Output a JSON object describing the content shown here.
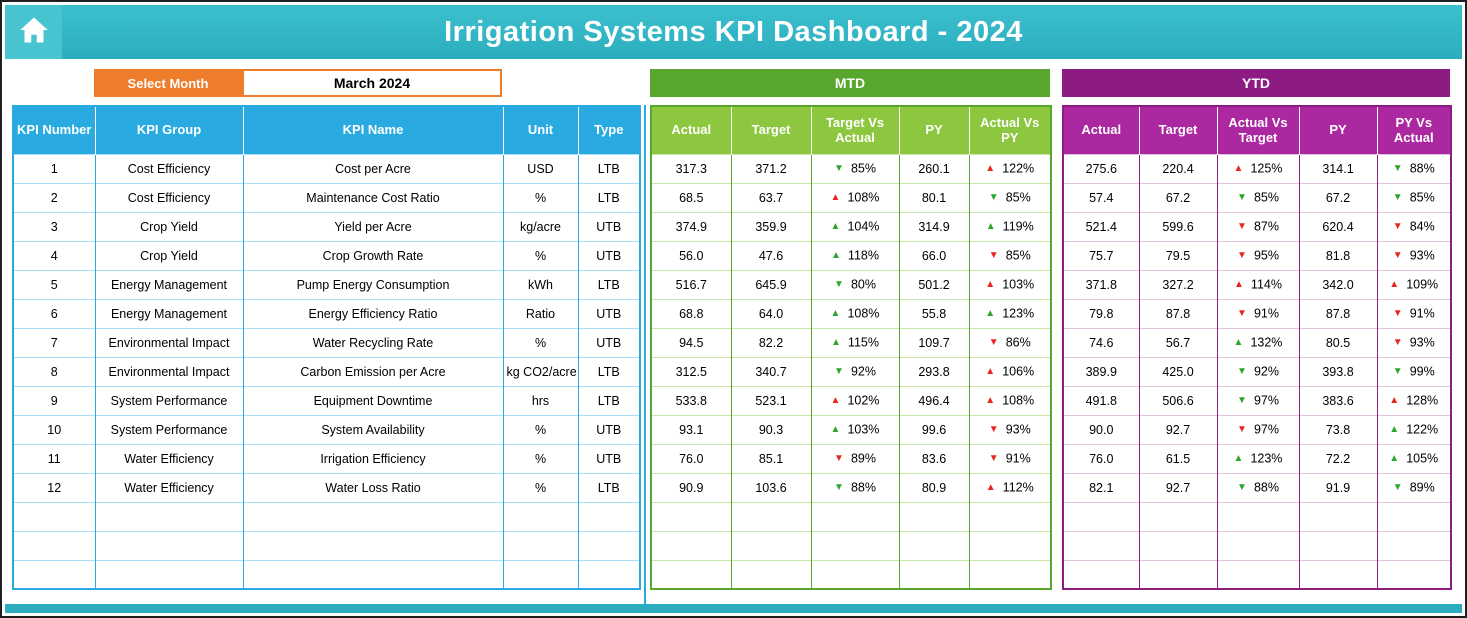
{
  "app": {
    "title": "Irrigation Systems KPI Dashboard - 2024"
  },
  "controls": {
    "select_month_label": "Select Month",
    "selected_month": "March 2024"
  },
  "bands": {
    "mtd": "MTD",
    "ytd": "YTD"
  },
  "icons": {
    "up": "▲",
    "down": "▼"
  },
  "colors": {
    "teal": "#2BADBD",
    "teal_light": "#3CC0CE",
    "teal_home": "#47C4D0",
    "orange": "#EE7C2B",
    "blue": "#29ABE2",
    "blue_light": "#A9DCF5",
    "green_band": "#58A62E",
    "green_header": "#8DC63F",
    "green_light": "#C9E6AA",
    "purple_band": "#8C1B82",
    "purple_header": "#AC28A0",
    "purple_light": "#E2C3DE",
    "arrow_green": "#2BA62B",
    "arrow_red": "#E8251F"
  },
  "table": {
    "info_headers": [
      "KPI Number",
      "KPI Group",
      "KPI Name",
      "Unit",
      "Type"
    ],
    "mtd_headers": [
      "Actual",
      "Target",
      "Target Vs Actual",
      "PY",
      "Actual Vs PY"
    ],
    "ytd_headers": [
      "Actual",
      "Target",
      "Actual Vs Target",
      "PY",
      "PY Vs Actual"
    ],
    "rows": [
      {
        "num": "1",
        "group": "Cost Efficiency",
        "name": "Cost per Acre",
        "unit": "USD",
        "type": "LTB",
        "mtd": {
          "actual": "317.3",
          "target": "371.2",
          "target_vs_actual": {
            "v": "85%",
            "d": "down",
            "c": "green"
          },
          "py": "260.1",
          "actual_vs_py": {
            "v": "122%",
            "d": "up",
            "c": "red"
          }
        },
        "ytd": {
          "actual": "275.6",
          "target": "220.4",
          "actual_vs_target": {
            "v": "125%",
            "d": "up",
            "c": "red"
          },
          "py": "314.1",
          "py_vs_actual": {
            "v": "88%",
            "d": "down",
            "c": "green"
          }
        }
      },
      {
        "num": "2",
        "group": "Cost Efficiency",
        "name": "Maintenance Cost Ratio",
        "unit": "%",
        "type": "LTB",
        "mtd": {
          "actual": "68.5",
          "target": "63.7",
          "target_vs_actual": {
            "v": "108%",
            "d": "up",
            "c": "red"
          },
          "py": "80.1",
          "actual_vs_py": {
            "v": "85%",
            "d": "down",
            "c": "green"
          }
        },
        "ytd": {
          "actual": "57.4",
          "target": "67.2",
          "actual_vs_target": {
            "v": "85%",
            "d": "down",
            "c": "green"
          },
          "py": "67.2",
          "py_vs_actual": {
            "v": "85%",
            "d": "down",
            "c": "green"
          }
        }
      },
      {
        "num": "3",
        "group": "Crop Yield",
        "name": "Yield per Acre",
        "unit": "kg/acre",
        "type": "UTB",
        "mtd": {
          "actual": "374.9",
          "target": "359.9",
          "target_vs_actual": {
            "v": "104%",
            "d": "up",
            "c": "green"
          },
          "py": "314.9",
          "actual_vs_py": {
            "v": "119%",
            "d": "up",
            "c": "green"
          }
        },
        "ytd": {
          "actual": "521.4",
          "target": "599.6",
          "actual_vs_target": {
            "v": "87%",
            "d": "down",
            "c": "red"
          },
          "py": "620.4",
          "py_vs_actual": {
            "v": "84%",
            "d": "down",
            "c": "red"
          }
        }
      },
      {
        "num": "4",
        "group": "Crop Yield",
        "name": "Crop Growth Rate",
        "unit": "%",
        "type": "UTB",
        "mtd": {
          "actual": "56.0",
          "target": "47.6",
          "target_vs_actual": {
            "v": "118%",
            "d": "up",
            "c": "green"
          },
          "py": "66.0",
          "actual_vs_py": {
            "v": "85%",
            "d": "down",
            "c": "red"
          }
        },
        "ytd": {
          "actual": "75.7",
          "target": "79.5",
          "actual_vs_target": {
            "v": "95%",
            "d": "down",
            "c": "red"
          },
          "py": "81.8",
          "py_vs_actual": {
            "v": "93%",
            "d": "down",
            "c": "red"
          }
        }
      },
      {
        "num": "5",
        "group": "Energy Management",
        "name": "Pump Energy Consumption",
        "unit": "kWh",
        "type": "LTB",
        "mtd": {
          "actual": "516.7",
          "target": "645.9",
          "target_vs_actual": {
            "v": "80%",
            "d": "down",
            "c": "green"
          },
          "py": "501.2",
          "actual_vs_py": {
            "v": "103%",
            "d": "up",
            "c": "red"
          }
        },
        "ytd": {
          "actual": "371.8",
          "target": "327.2",
          "actual_vs_target": {
            "v": "114%",
            "d": "up",
            "c": "red"
          },
          "py": "342.0",
          "py_vs_actual": {
            "v": "109%",
            "d": "up",
            "c": "red"
          }
        }
      },
      {
        "num": "6",
        "group": "Energy Management",
        "name": "Energy Efficiency Ratio",
        "unit": "Ratio",
        "type": "UTB",
        "mtd": {
          "actual": "68.8",
          "target": "64.0",
          "target_vs_actual": {
            "v": "108%",
            "d": "up",
            "c": "green"
          },
          "py": "55.8",
          "actual_vs_py": {
            "v": "123%",
            "d": "up",
            "c": "green"
          }
        },
        "ytd": {
          "actual": "79.8",
          "target": "87.8",
          "actual_vs_target": {
            "v": "91%",
            "d": "down",
            "c": "red"
          },
          "py": "87.8",
          "py_vs_actual": {
            "v": "91%",
            "d": "down",
            "c": "red"
          }
        }
      },
      {
        "num": "7",
        "group": "Environmental Impact",
        "name": "Water Recycling Rate",
        "unit": "%",
        "type": "UTB",
        "mtd": {
          "actual": "94.5",
          "target": "82.2",
          "target_vs_actual": {
            "v": "115%",
            "d": "up",
            "c": "green"
          },
          "py": "109.7",
          "actual_vs_py": {
            "v": "86%",
            "d": "down",
            "c": "red"
          }
        },
        "ytd": {
          "actual": "74.6",
          "target": "56.7",
          "actual_vs_target": {
            "v": "132%",
            "d": "up",
            "c": "green"
          },
          "py": "80.5",
          "py_vs_actual": {
            "v": "93%",
            "d": "down",
            "c": "red"
          }
        }
      },
      {
        "num": "8",
        "group": "Environmental Impact",
        "name": "Carbon Emission per Acre",
        "unit": "kg CO2/acre",
        "type": "LTB",
        "mtd": {
          "actual": "312.5",
          "target": "340.7",
          "target_vs_actual": {
            "v": "92%",
            "d": "down",
            "c": "green"
          },
          "py": "293.8",
          "actual_vs_py": {
            "v": "106%",
            "d": "up",
            "c": "red"
          }
        },
        "ytd": {
          "actual": "389.9",
          "target": "425.0",
          "actual_vs_target": {
            "v": "92%",
            "d": "down",
            "c": "green"
          },
          "py": "393.8",
          "py_vs_actual": {
            "v": "99%",
            "d": "down",
            "c": "green"
          }
        }
      },
      {
        "num": "9",
        "group": "System Performance",
        "name": "Equipment Downtime",
        "unit": "hrs",
        "type": "LTB",
        "mtd": {
          "actual": "533.8",
          "target": "523.1",
          "target_vs_actual": {
            "v": "102%",
            "d": "up",
            "c": "red"
          },
          "py": "496.4",
          "actual_vs_py": {
            "v": "108%",
            "d": "up",
            "c": "red"
          }
        },
        "ytd": {
          "actual": "491.8",
          "target": "506.6",
          "actual_vs_target": {
            "v": "97%",
            "d": "down",
            "c": "green"
          },
          "py": "383.6",
          "py_vs_actual": {
            "v": "128%",
            "d": "up",
            "c": "red"
          }
        }
      },
      {
        "num": "10",
        "group": "System Performance",
        "name": "System Availability",
        "unit": "%",
        "type": "UTB",
        "mtd": {
          "actual": "93.1",
          "target": "90.3",
          "target_vs_actual": {
            "v": "103%",
            "d": "up",
            "c": "green"
          },
          "py": "99.6",
          "actual_vs_py": {
            "v": "93%",
            "d": "down",
            "c": "red"
          }
        },
        "ytd": {
          "actual": "90.0",
          "target": "92.7",
          "actual_vs_target": {
            "v": "97%",
            "d": "down",
            "c": "red"
          },
          "py": "73.8",
          "py_vs_actual": {
            "v": "122%",
            "d": "up",
            "c": "green"
          }
        }
      },
      {
        "num": "11",
        "group": "Water Efficiency",
        "name": "Irrigation Efficiency",
        "unit": "%",
        "type": "UTB",
        "mtd": {
          "actual": "76.0",
          "target": "85.1",
          "target_vs_actual": {
            "v": "89%",
            "d": "down",
            "c": "red"
          },
          "py": "83.6",
          "actual_vs_py": {
            "v": "91%",
            "d": "down",
            "c": "red"
          }
        },
        "ytd": {
          "actual": "76.0",
          "target": "61.5",
          "actual_vs_target": {
            "v": "123%",
            "d": "up",
            "c": "green"
          },
          "py": "72.2",
          "py_vs_actual": {
            "v": "105%",
            "d": "up",
            "c": "green"
          }
        }
      },
      {
        "num": "12",
        "group": "Water Efficiency",
        "name": "Water Loss Ratio",
        "unit": "%",
        "type": "LTB",
        "mtd": {
          "actual": "90.9",
          "target": "103.6",
          "target_vs_actual": {
            "v": "88%",
            "d": "down",
            "c": "green"
          },
          "py": "80.9",
          "actual_vs_py": {
            "v": "112%",
            "d": "up",
            "c": "red"
          }
        },
        "ytd": {
          "actual": "82.1",
          "target": "92.7",
          "actual_vs_target": {
            "v": "88%",
            "d": "down",
            "c": "green"
          },
          "py": "91.9",
          "py_vs_actual": {
            "v": "89%",
            "d": "down",
            "c": "green"
          }
        }
      }
    ]
  }
}
